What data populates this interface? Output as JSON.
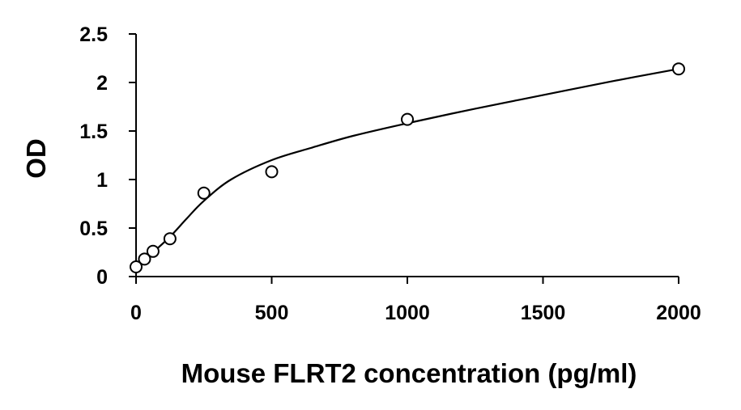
{
  "chart_data": {
    "type": "scatter",
    "title": "",
    "xlabel": "Mouse FLRT2 concentration (pg/ml)",
    "ylabel": "OD",
    "xlim": [
      0,
      2000
    ],
    "ylim": [
      0,
      2.5
    ],
    "x_ticks": [
      0,
      500,
      1000,
      1500,
      2000
    ],
    "y_ticks": [
      0,
      0.5,
      1,
      1.5,
      2,
      2.5
    ],
    "x_tick_labels": [
      "0",
      "500",
      "1000",
      "1500",
      "2000"
    ],
    "y_tick_labels": [
      "0",
      "0.5",
      "1",
      "1.5",
      "2",
      "2.5"
    ],
    "grid": false,
    "legend": "none",
    "series": [
      {
        "marker": "open-circle",
        "x": [
          0,
          31.25,
          62.5,
          125,
          250,
          500,
          1000,
          2000
        ],
        "y": [
          0.1,
          0.18,
          0.26,
          0.39,
          0.86,
          1.08,
          1.62,
          2.14
        ]
      }
    ],
    "fit_curve": {
      "x": [
        0,
        31.25,
        62.5,
        125,
        187.5,
        250,
        350,
        500,
        650,
        800,
        1000,
        1250,
        1500,
        1750,
        2000
      ],
      "y": [
        0.1,
        0.17,
        0.25,
        0.41,
        0.6,
        0.78,
        1.0,
        1.2,
        1.33,
        1.45,
        1.58,
        1.73,
        1.87,
        2.01,
        2.14
      ]
    },
    "colors": {
      "axis": "#000000",
      "marker": "#000000",
      "curve": "#000000"
    }
  }
}
